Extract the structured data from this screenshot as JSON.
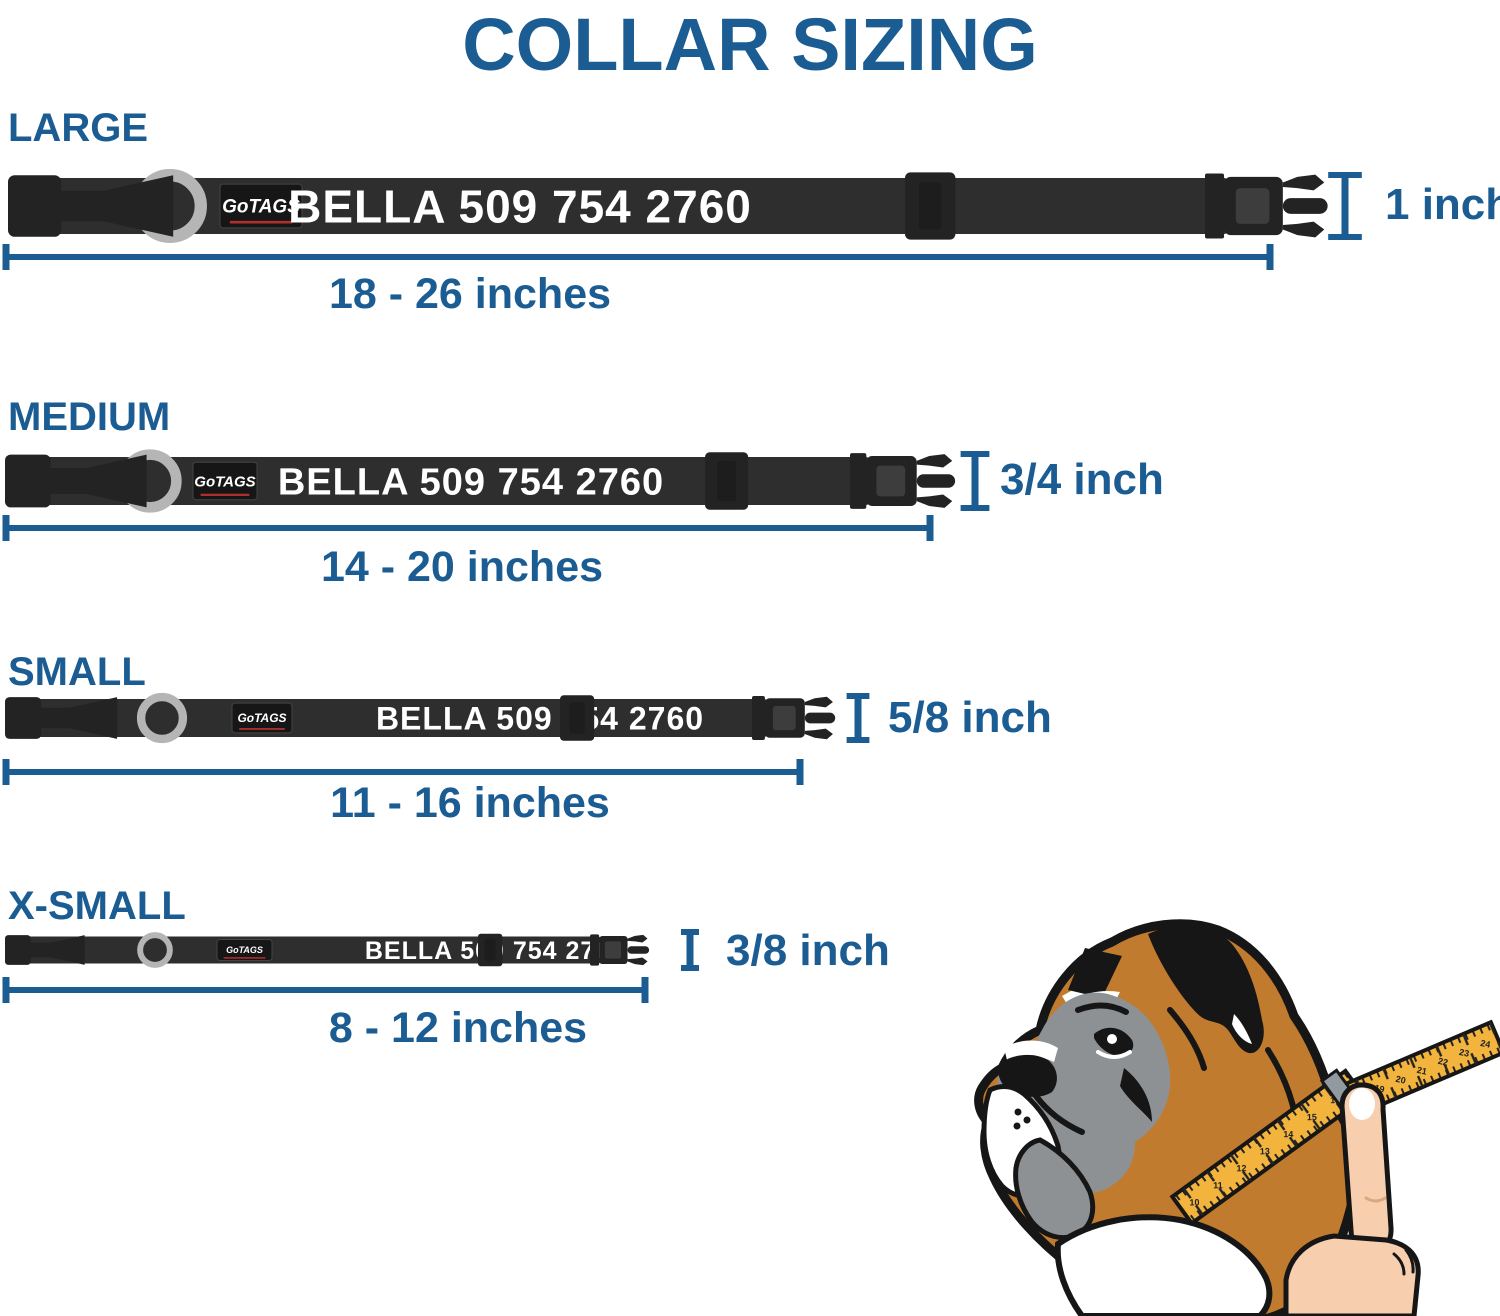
{
  "title": "COLLAR SIZING",
  "collar": {
    "brand": "GoTAGS",
    "personalization": "BELLA 509 754 2760"
  },
  "sizes": [
    {
      "name": "LARGE",
      "length_range": "18 - 26 inches",
      "width": "1 inch"
    },
    {
      "name": "MEDIUM",
      "length_range": "14 - 20 inches",
      "width": "3/4 inch"
    },
    {
      "name": "SMALL",
      "length_range": "11 - 16 inches",
      "width": "5/8 inch"
    },
    {
      "name": "X-SMALL",
      "length_range": "8 - 12 inches",
      "width": "3/8 inch"
    }
  ],
  "illustration": {
    "tape_numbers_front": [
      "10",
      "11",
      "12",
      "13",
      "14",
      "15",
      "16"
    ],
    "tape_numbers_back": [
      "18",
      "19",
      "20",
      "21",
      "22",
      "23",
      "24"
    ]
  },
  "colors": {
    "accent": "#1b5c93",
    "collar": "#2e2e2e",
    "collar_dark": "#232323",
    "collar_inset": "#3d3d3d",
    "ring": "#b5b5b5",
    "patch": "#161616",
    "patch_underline": "#b03030",
    "tape": "#f2b43c",
    "dog_brown": "#c17b2e",
    "dog_gray": "#8e9194",
    "skin": "#f8cfae",
    "outline": "#161616",
    "text_white": "#ffffff"
  }
}
